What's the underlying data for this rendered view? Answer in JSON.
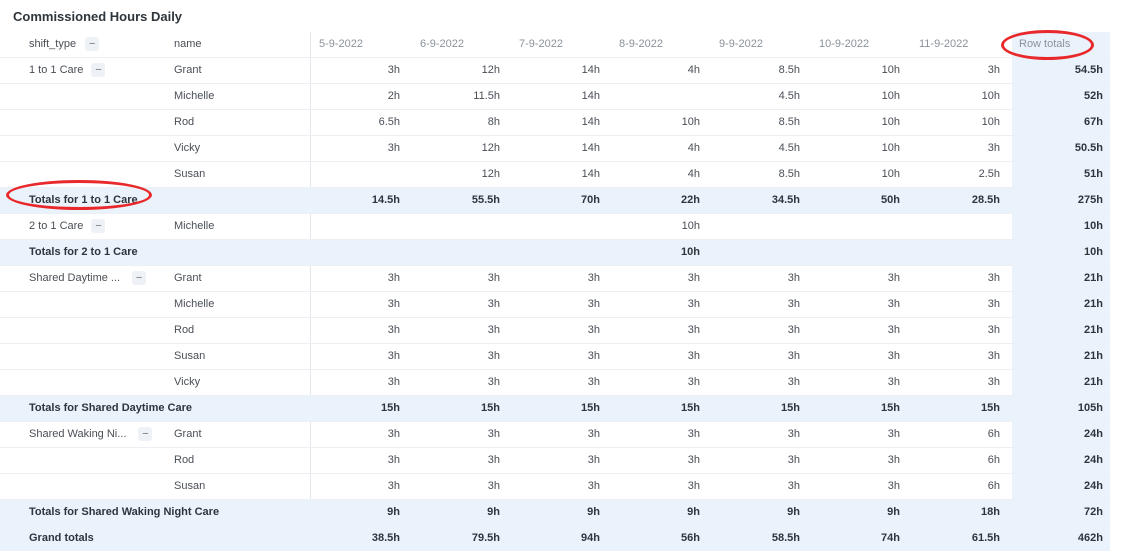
{
  "title": "Commissioned Hours Daily",
  "header": {
    "shift_type": "shift_type",
    "name": "name",
    "dates": [
      "5-9-2022",
      "6-9-2022",
      "7-9-2022",
      "8-9-2022",
      "9-9-2022",
      "10-9-2022",
      "11-9-2022"
    ],
    "row_totals": "Row totals"
  },
  "collapse_icon": "−",
  "rows": [
    {
      "kind": "data",
      "shift": "1 to 1 Care",
      "collapse": true,
      "name": "Grant",
      "vals": [
        "3h",
        "12h",
        "14h",
        "4h",
        "8.5h",
        "10h",
        "3h"
      ],
      "total": "54.5h"
    },
    {
      "kind": "data",
      "shift": "",
      "name": "Michelle",
      "vals": [
        "2h",
        "11.5h",
        "14h",
        "",
        "4.5h",
        "10h",
        "10h"
      ],
      "total": "52h"
    },
    {
      "kind": "data",
      "shift": "",
      "name": "Rod",
      "vals": [
        "6.5h",
        "8h",
        "14h",
        "10h",
        "8.5h",
        "10h",
        "10h"
      ],
      "total": "67h"
    },
    {
      "kind": "data",
      "shift": "",
      "name": "Vicky",
      "vals": [
        "3h",
        "12h",
        "14h",
        "4h",
        "4.5h",
        "10h",
        "3h"
      ],
      "total": "50.5h"
    },
    {
      "kind": "data",
      "shift": "",
      "name": "Susan",
      "vals": [
        "",
        "12h",
        "14h",
        "4h",
        "8.5h",
        "10h",
        "2.5h"
      ],
      "total": "51h"
    },
    {
      "kind": "tot",
      "label": "Totals for 1 to 1 Care",
      "vals": [
        "14.5h",
        "55.5h",
        "70h",
        "22h",
        "34.5h",
        "50h",
        "28.5h"
      ],
      "total": "275h"
    },
    {
      "kind": "data",
      "shift": "2 to 1 Care",
      "collapse": true,
      "name": "Michelle",
      "vals": [
        "",
        "",
        "",
        "10h",
        "",
        "",
        ""
      ],
      "total": "10h"
    },
    {
      "kind": "tot",
      "label": "Totals for 2 to 1 Care",
      "vals": [
        "",
        "",
        "",
        "10h",
        "",
        "",
        ""
      ],
      "total": "10h"
    },
    {
      "kind": "data",
      "shift": "Shared Daytime ...",
      "collapse": true,
      "name": "Grant",
      "vals": [
        "3h",
        "3h",
        "3h",
        "3h",
        "3h",
        "3h",
        "3h"
      ],
      "total": "21h"
    },
    {
      "kind": "data",
      "shift": "",
      "name": "Michelle",
      "vals": [
        "3h",
        "3h",
        "3h",
        "3h",
        "3h",
        "3h",
        "3h"
      ],
      "total": "21h"
    },
    {
      "kind": "data",
      "shift": "",
      "name": "Rod",
      "vals": [
        "3h",
        "3h",
        "3h",
        "3h",
        "3h",
        "3h",
        "3h"
      ],
      "total": "21h"
    },
    {
      "kind": "data",
      "shift": "",
      "name": "Susan",
      "vals": [
        "3h",
        "3h",
        "3h",
        "3h",
        "3h",
        "3h",
        "3h"
      ],
      "total": "21h"
    },
    {
      "kind": "data",
      "shift": "",
      "name": "Vicky",
      "vals": [
        "3h",
        "3h",
        "3h",
        "3h",
        "3h",
        "3h",
        "3h"
      ],
      "total": "21h"
    },
    {
      "kind": "tot",
      "label": "Totals for Shared Daytime Care",
      "vals": [
        "15h",
        "15h",
        "15h",
        "15h",
        "15h",
        "15h",
        "15h"
      ],
      "total": "105h"
    },
    {
      "kind": "data",
      "shift": "Shared Waking Ni...",
      "collapse": true,
      "name": "Grant",
      "vals": [
        "3h",
        "3h",
        "3h",
        "3h",
        "3h",
        "3h",
        "6h"
      ],
      "total": "24h"
    },
    {
      "kind": "data",
      "shift": "",
      "name": "Rod",
      "vals": [
        "3h",
        "3h",
        "3h",
        "3h",
        "3h",
        "3h",
        "6h"
      ],
      "total": "24h"
    },
    {
      "kind": "data",
      "shift": "",
      "name": "Susan",
      "vals": [
        "3h",
        "3h",
        "3h",
        "3h",
        "3h",
        "3h",
        "6h"
      ],
      "total": "24h"
    },
    {
      "kind": "tot",
      "label": "Totals for Shared Waking Night Care",
      "vals": [
        "9h",
        "9h",
        "9h",
        "9h",
        "9h",
        "9h",
        "18h"
      ],
      "total": "72h"
    },
    {
      "kind": "grand",
      "label": "Grand totals",
      "vals": [
        "38.5h",
        "79.5h",
        "94h",
        "56h",
        "58.5h",
        "74h",
        "61.5h"
      ],
      "total": "462h"
    }
  ],
  "annotations": {
    "color": "#e8282b"
  }
}
